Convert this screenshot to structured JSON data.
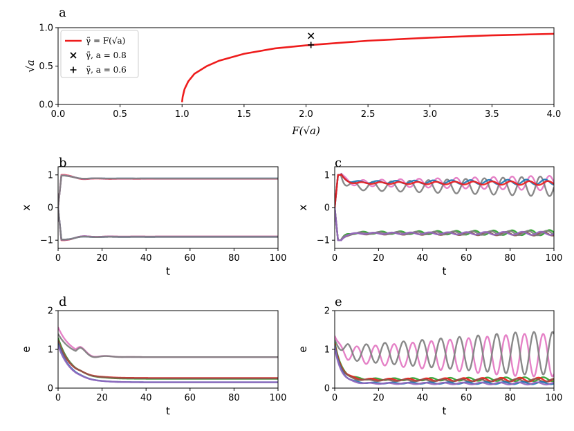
{
  "colors": {
    "red": "#ee1c1c",
    "pink": "#e377c2",
    "gray": "#7f7f7f",
    "blue": "#1f77b4",
    "green": "#2ca02c",
    "brown": "#8c564b",
    "purple": "#9467bd",
    "dark_red": "#d62728"
  },
  "chart_data": [
    {
      "panel": "a",
      "type": "line",
      "xlabel": "F(√a)",
      "ylabel": "√a",
      "xlim": [
        0.0,
        4.0
      ],
      "ylim": [
        0.0,
        1.0
      ],
      "xticks": [
        "0.0",
        "0.5",
        "1.0",
        "1.5",
        "2.0",
        "2.5",
        "3.0",
        "3.5",
        "4.0"
      ],
      "yticks": [
        "0.0",
        "0.5",
        "1.0"
      ],
      "legend_position": "top-left",
      "legend": [
        "γ̃ = F(√a)",
        "γ̃, a = 0.8",
        "γ̃, a = 0.6"
      ],
      "series": [
        {
          "name": "γ̃ = F(√a)",
          "kind": "line",
          "color": "red",
          "x": [
            1.0,
            1.005,
            1.02,
            1.05,
            1.1,
            1.2,
            1.3,
            1.5,
            1.75,
            2.0,
            2.5,
            3.0,
            3.5,
            4.0
          ],
          "y": [
            0.03,
            0.1,
            0.2,
            0.3,
            0.4,
            0.5,
            0.57,
            0.66,
            0.73,
            0.77,
            0.83,
            0.87,
            0.9,
            0.92
          ]
        },
        {
          "name": "γ̃, a = 0.8",
          "kind": "marker",
          "marker": "x",
          "x": [
            2.04
          ],
          "y": [
            0.894
          ]
        },
        {
          "name": "γ̃, a = 0.6",
          "kind": "marker",
          "marker": "+",
          "x": [
            2.04
          ],
          "y": [
            0.775
          ]
        }
      ]
    },
    {
      "panel": "b",
      "type": "line",
      "xlabel": "t",
      "ylabel": "x",
      "xlim": [
        0,
        100
      ],
      "ylim": [
        -1.25,
        1.25
      ],
      "xticks": [
        "0",
        "20",
        "40",
        "60",
        "80",
        "100"
      ],
      "yticks": [
        "−1",
        "0",
        "1"
      ],
      "series": [
        {
          "color": "red",
          "form": "damped",
          "start": 0,
          "peak": 1.0,
          "final": 0.88,
          "amp": 0.05,
          "period": 12,
          "tau": 8
        },
        {
          "color": "blue",
          "form": "damped",
          "start": 0,
          "peak": 0.98,
          "final": 0.89,
          "amp": 0.04,
          "period": 12,
          "tau": 8
        },
        {
          "color": "pink",
          "form": "damped",
          "start": 0,
          "peak": 0.99,
          "final": 0.885,
          "amp": 0.04,
          "period": 12,
          "tau": 8
        },
        {
          "color": "gray",
          "form": "damped",
          "start": 0,
          "peak": 0.98,
          "final": 0.89,
          "amp": 0.03,
          "period": 12,
          "tau": 8
        },
        {
          "color": "red",
          "form": "damped",
          "start": 0,
          "peak": -1.0,
          "final": -0.89,
          "amp": -0.05,
          "period": 12,
          "tau": 8
        },
        {
          "color": "blue",
          "form": "damped",
          "start": 0,
          "peak": -0.98,
          "final": -0.9,
          "amp": -0.04,
          "period": 12,
          "tau": 8
        },
        {
          "color": "purple",
          "form": "damped",
          "start": 0,
          "peak": -0.99,
          "final": -0.89,
          "amp": -0.05,
          "period": 12,
          "tau": 8
        },
        {
          "color": "gray",
          "form": "damped",
          "start": 0,
          "peak": -0.98,
          "final": -0.9,
          "amp": -0.04,
          "period": 12,
          "tau": 8
        }
      ]
    },
    {
      "panel": "c",
      "type": "line",
      "xlabel": "t",
      "ylabel": "x",
      "xlim": [
        0,
        100
      ],
      "ylim": [
        -1.25,
        1.25
      ],
      "xticks": [
        "0",
        "20",
        "40",
        "60",
        "80",
        "100"
      ],
      "yticks": [
        "−1",
        "0",
        "1"
      ],
      "series": [
        {
          "color": "pink",
          "form": "growing",
          "start": 0,
          "peak": 1.0,
          "final": 0.75,
          "amp": 0.22,
          "period": 8.5,
          "phase": 0.5
        },
        {
          "color": "gray",
          "form": "growing",
          "start": 0,
          "peak": 1.0,
          "final": 0.65,
          "amp": 0.3,
          "period": 8.5,
          "phase": 3.6
        },
        {
          "color": "blue",
          "form": "growing",
          "start": 0,
          "peak": 1.0,
          "final": 0.78,
          "amp": 0.08,
          "period": 8.5,
          "phase": 2.0
        },
        {
          "color": "red",
          "form": "growing",
          "start": 0,
          "peak": 1.0,
          "final": 0.75,
          "amp": 0.06,
          "period": 8.5,
          "phase": 1.0
        },
        {
          "color": "green",
          "form": "growing",
          "start": 0,
          "peak": -1.0,
          "final": -0.77,
          "amp": 0.08,
          "period": 8.5,
          "phase": 0.5
        },
        {
          "color": "brown",
          "form": "growing",
          "start": 0,
          "peak": -1.0,
          "final": -0.8,
          "amp": 0.06,
          "period": 8.5,
          "phase": 2.6
        },
        {
          "color": "gray",
          "form": "growing",
          "start": 0,
          "peak": -1.0,
          "final": -0.78,
          "amp": 0.07,
          "period": 8.5,
          "phase": 1.4
        },
        {
          "color": "purple",
          "form": "growing",
          "start": 0,
          "peak": -1.0,
          "final": -0.79,
          "amp": 0.05,
          "period": 8.5,
          "phase": 3.4
        }
      ]
    },
    {
      "panel": "d",
      "type": "line",
      "xlabel": "t",
      "ylabel": "e",
      "xlim": [
        0,
        100
      ],
      "ylim": [
        0,
        2
      ],
      "xticks": [
        "0",
        "20",
        "40",
        "60",
        "80",
        "100"
      ],
      "yticks": [
        "0",
        "1",
        "2"
      ],
      "series": [
        {
          "color": "pink",
          "form": "decay",
          "start": 1.57,
          "final": 0.8,
          "amp": 0.14,
          "period": 12,
          "tau": 6
        },
        {
          "color": "gray",
          "form": "decay",
          "start": 1.4,
          "final": 0.8,
          "amp": 0.15,
          "period": 12,
          "tau": 6
        },
        {
          "color": "green",
          "form": "decay",
          "start": 1.3,
          "final": 0.24,
          "amp": 0.02,
          "period": 12,
          "tau": 6
        },
        {
          "color": "red",
          "form": "decay",
          "start": 1.2,
          "final": 0.26,
          "amp": 0.02,
          "period": 12,
          "tau": 6
        },
        {
          "color": "brown",
          "form": "decay",
          "start": 1.25,
          "final": 0.25,
          "amp": 0.02,
          "period": 12,
          "tau": 6
        },
        {
          "color": "blue",
          "form": "decay",
          "start": 1.15,
          "final": 0.15,
          "amp": 0.01,
          "period": 12,
          "tau": 6
        },
        {
          "color": "purple",
          "form": "decay",
          "start": 1.1,
          "final": 0.15,
          "amp": 0.01,
          "period": 12,
          "tau": 6
        }
      ]
    },
    {
      "panel": "e",
      "type": "line",
      "xlabel": "t",
      "ylabel": "e",
      "xlim": [
        0,
        100
      ],
      "ylim": [
        0,
        2
      ],
      "xticks": [
        "0",
        "20",
        "40",
        "60",
        "80",
        "100"
      ],
      "yticks": [
        "0",
        "1",
        "2"
      ],
      "series": [
        {
          "color": "pink",
          "form": "growing_e",
          "start": 1.35,
          "final": 0.85,
          "amp": 0.55,
          "period": 8.5,
          "phase": 0.4
        },
        {
          "color": "gray",
          "form": "growing_e",
          "start": 1.25,
          "final": 0.9,
          "amp": 0.55,
          "period": 8.5,
          "phase": 3.5
        },
        {
          "color": "green",
          "form": "growing_e",
          "start": 1.2,
          "final": 0.23,
          "amp": 0.05,
          "period": 8.5,
          "phase": 0.4
        },
        {
          "color": "red",
          "form": "growing_e",
          "start": 1.15,
          "final": 0.22,
          "amp": 0.05,
          "period": 8.5,
          "phase": 2.0
        },
        {
          "color": "brown",
          "form": "growing_e",
          "start": 1.1,
          "final": 0.2,
          "amp": 0.04,
          "period": 8.5,
          "phase": 3.0
        },
        {
          "color": "blue",
          "form": "growing_e",
          "start": 1.1,
          "final": 0.13,
          "amp": 0.03,
          "period": 8.5,
          "phase": 1.0
        },
        {
          "color": "purple",
          "form": "growing_e",
          "start": 1.05,
          "final": 0.12,
          "amp": 0.03,
          "period": 8.5,
          "phase": 2.5
        }
      ]
    }
  ]
}
